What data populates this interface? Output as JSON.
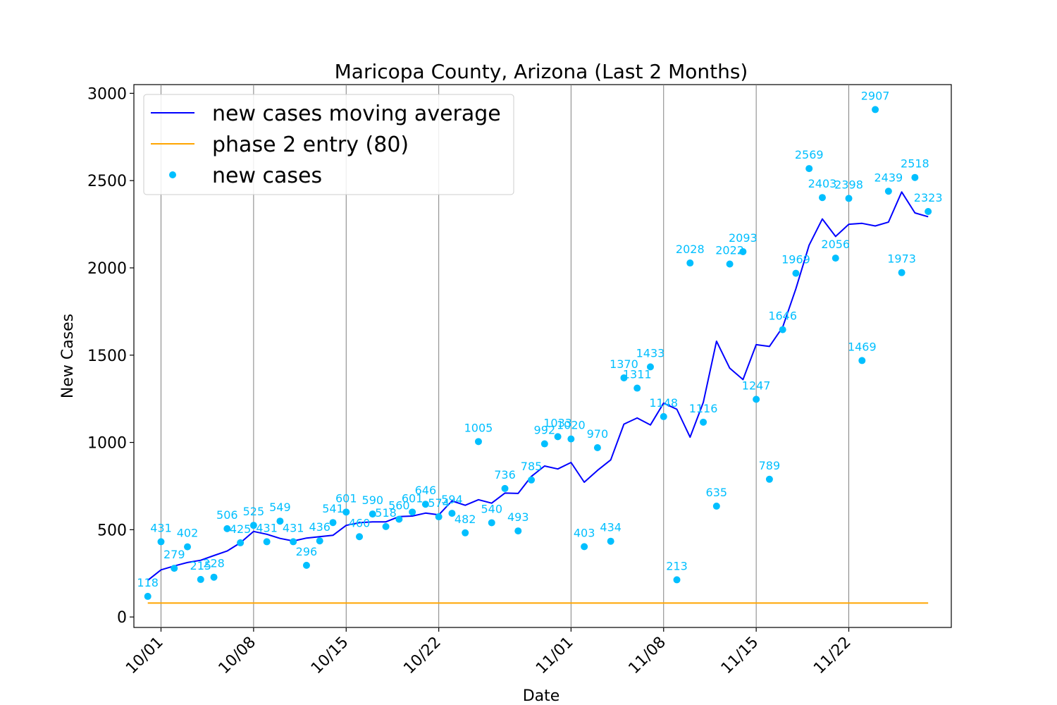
{
  "chart_data": {
    "type": "line",
    "title": "Maricopa County, Arizona (Last 2 Months)",
    "xlabel": "Date",
    "ylabel": "New Cases",
    "ylim": [
      -60,
      3050
    ],
    "yticks": [
      0,
      500,
      1000,
      1500,
      2000,
      2500,
      3000
    ],
    "xticks": [
      {
        "label": "10/01",
        "day": 1
      },
      {
        "label": "10/08",
        "day": 8
      },
      {
        "label": "10/15",
        "day": 15
      },
      {
        "label": "10/22",
        "day": 22
      },
      {
        "label": "11/01",
        "day": 32
      },
      {
        "label": "11/08",
        "day": 39
      },
      {
        "label": "11/15",
        "day": 46
      },
      {
        "label": "11/22",
        "day": 53
      }
    ],
    "grid": "vertical",
    "legend_position": "top-left",
    "colors": {
      "moving_average": "#0000ff",
      "phase2": "#ffa500",
      "points": "#00bfff",
      "grid": "#808080"
    },
    "legend": [
      {
        "name": "new cases moving average",
        "kind": "line",
        "color": "#0000ff"
      },
      {
        "name": "phase 2 entry (80)",
        "kind": "line",
        "color": "#ffa500"
      },
      {
        "name": "new cases",
        "kind": "point",
        "color": "#00bfff"
      }
    ],
    "phase2_value": 80,
    "days": [
      0,
      1,
      2,
      3,
      4,
      5,
      6,
      7,
      8,
      9,
      10,
      11,
      12,
      13,
      14,
      15,
      16,
      17,
      18,
      19,
      20,
      21,
      22,
      23,
      24,
      25,
      26,
      27,
      28,
      29,
      30,
      31,
      32,
      33,
      34,
      35,
      36,
      37,
      38,
      39,
      40,
      41,
      42,
      43,
      44,
      45,
      46,
      47,
      48,
      49,
      50,
      51,
      52,
      53,
      54,
      55,
      56,
      57,
      58,
      59
    ],
    "new_cases": [
      118,
      431,
      279,
      402,
      215,
      228,
      506,
      425,
      525,
      431,
      549,
      431,
      296,
      436,
      541,
      601,
      460,
      590,
      518,
      560,
      601,
      646,
      574,
      594,
      482,
      1005,
      540,
      736,
      493,
      785,
      992,
      1033,
      1020,
      403,
      970,
      434,
      1370,
      1311,
      1433,
      1148,
      213,
      2028,
      1116,
      635,
      2022,
      2093,
      1247,
      789,
      1646,
      1969,
      2569,
      2403,
      2056,
      2398,
      1469,
      2907,
      2439,
      1973,
      2518,
      2323
    ],
    "moving_average": [
      210,
      270,
      292,
      312,
      325,
      352,
      378,
      425,
      490,
      474,
      450,
      435,
      452,
      460,
      468,
      525,
      540,
      545,
      545,
      575,
      578,
      595,
      585,
      665,
      640,
      672,
      652,
      710,
      708,
      805,
      865,
      848,
      885,
      772,
      840,
      900,
      1105,
      1140,
      1100,
      1225,
      1190,
      1030,
      1230,
      1580,
      1425,
      1360,
      1560,
      1550,
      1660,
      1880,
      2130,
      2280,
      2180,
      2250,
      2255,
      2240,
      2262,
      2435,
      2315,
      2293
    ]
  }
}
